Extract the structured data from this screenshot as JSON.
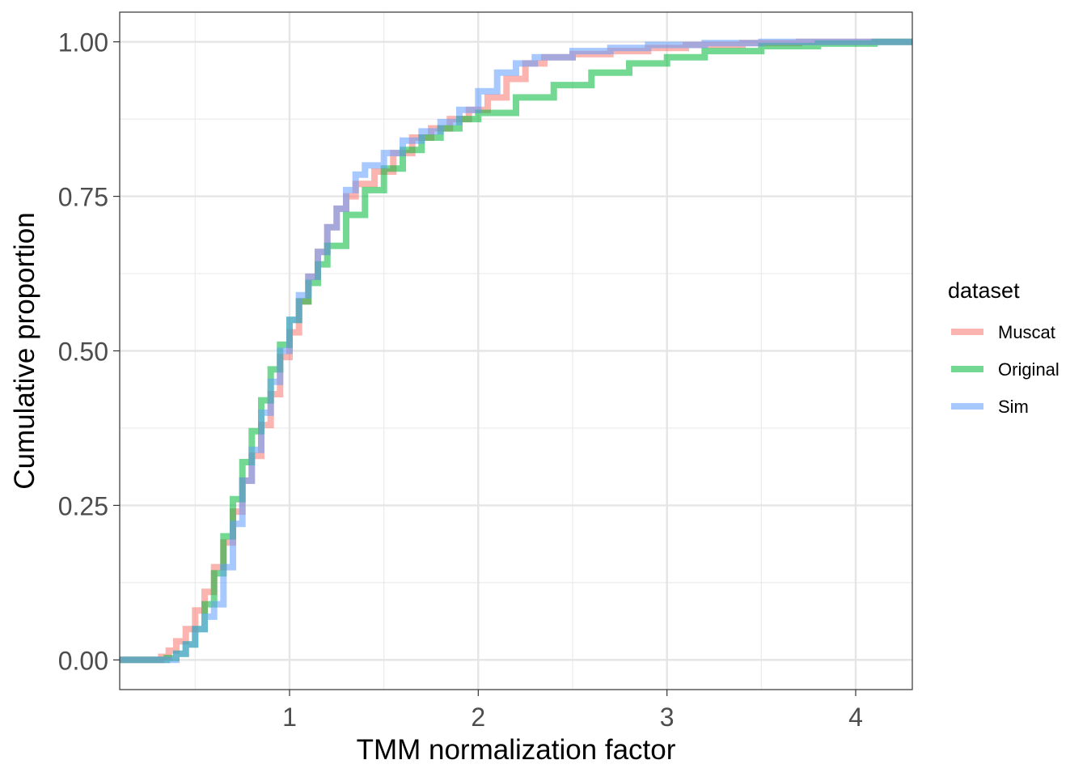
{
  "chart_data": {
    "type": "line",
    "step": true,
    "xlabel": "TMM normalization factor",
    "ylabel": "Cumulative proportion",
    "xlim": [
      0.1,
      4.3
    ],
    "ylim": [
      -0.048,
      1.048
    ],
    "x_ticks": [
      1,
      2,
      3,
      4
    ],
    "x_tick_labels": [
      "1",
      "2",
      "3",
      "4"
    ],
    "x_minor_breaks": [
      0.5,
      1.5,
      2.5,
      3.5
    ],
    "y_ticks": [
      0,
      0.25,
      0.5,
      0.75,
      1
    ],
    "y_tick_labels": [
      "0.00",
      "0.25",
      "0.50",
      "0.75",
      "1.00"
    ],
    "y_minor_breaks": [
      0.125,
      0.375,
      0.625,
      0.875
    ],
    "grid": true,
    "legend": {
      "title": "dataset",
      "position": "right"
    },
    "series": [
      {
        "name": "Muscat",
        "color": "#F8766D",
        "x": [
          0.1,
          0.28,
          0.32,
          0.36,
          0.4,
          0.45,
          0.5,
          0.55,
          0.6,
          0.65,
          0.7,
          0.75,
          0.8,
          0.85,
          0.9,
          0.95,
          1.0,
          1.05,
          1.1,
          1.15,
          1.2,
          1.25,
          1.3,
          1.35,
          1.45,
          1.55,
          1.65,
          1.75,
          1.85,
          1.95,
          2.05,
          2.15,
          2.25,
          2.35,
          2.5,
          2.7,
          2.9,
          3.1,
          3.4,
          3.7,
          4.3
        ],
        "y": [
          0,
          0,
          0.005,
          0.015,
          0.03,
          0.05,
          0.08,
          0.11,
          0.15,
          0.19,
          0.24,
          0.29,
          0.33,
          0.38,
          0.43,
          0.49,
          0.53,
          0.58,
          0.62,
          0.66,
          0.7,
          0.73,
          0.75,
          0.77,
          0.79,
          0.82,
          0.845,
          0.86,
          0.875,
          0.89,
          0.91,
          0.94,
          0.965,
          0.975,
          0.98,
          0.985,
          0.99,
          0.995,
          0.998,
          1.0,
          1.0
        ]
      },
      {
        "name": "Original",
        "color": "#00BA38",
        "x": [
          0.1,
          0.3,
          0.35,
          0.4,
          0.45,
          0.5,
          0.55,
          0.6,
          0.65,
          0.7,
          0.75,
          0.8,
          0.85,
          0.9,
          0.95,
          1.0,
          1.05,
          1.1,
          1.15,
          1.2,
          1.3,
          1.4,
          1.5,
          1.6,
          1.7,
          1.8,
          1.9,
          2.0,
          2.2,
          2.4,
          2.6,
          2.8,
          3.0,
          3.2,
          3.5,
          3.8,
          4.1,
          4.3
        ],
        "y": [
          0,
          0,
          0.003,
          0.01,
          0.025,
          0.05,
          0.09,
          0.14,
          0.2,
          0.26,
          0.32,
          0.37,
          0.42,
          0.47,
          0.51,
          0.55,
          0.58,
          0.61,
          0.64,
          0.67,
          0.72,
          0.76,
          0.795,
          0.825,
          0.845,
          0.86,
          0.875,
          0.885,
          0.91,
          0.93,
          0.95,
          0.965,
          0.975,
          0.985,
          0.993,
          0.997,
          1.0,
          1.0
        ]
      },
      {
        "name": "Sim",
        "color": "#619CFF",
        "x": [
          0.1,
          0.33,
          0.4,
          0.45,
          0.5,
          0.55,
          0.6,
          0.65,
          0.7,
          0.75,
          0.8,
          0.85,
          0.9,
          0.95,
          1.0,
          1.05,
          1.1,
          1.15,
          1.2,
          1.25,
          1.3,
          1.35,
          1.4,
          1.5,
          1.6,
          1.7,
          1.8,
          1.9,
          2.0,
          2.1,
          2.2,
          2.3,
          2.5,
          2.7,
          2.9,
          3.2,
          3.5,
          4.3
        ],
        "y": [
          0,
          0,
          0.01,
          0.025,
          0.05,
          0.07,
          0.09,
          0.15,
          0.22,
          0.29,
          0.34,
          0.4,
          0.45,
          0.5,
          0.55,
          0.59,
          0.62,
          0.66,
          0.7,
          0.73,
          0.76,
          0.785,
          0.8,
          0.82,
          0.84,
          0.855,
          0.87,
          0.89,
          0.92,
          0.95,
          0.965,
          0.975,
          0.985,
          0.99,
          0.995,
          0.998,
          1.0,
          1.0
        ]
      }
    ]
  }
}
